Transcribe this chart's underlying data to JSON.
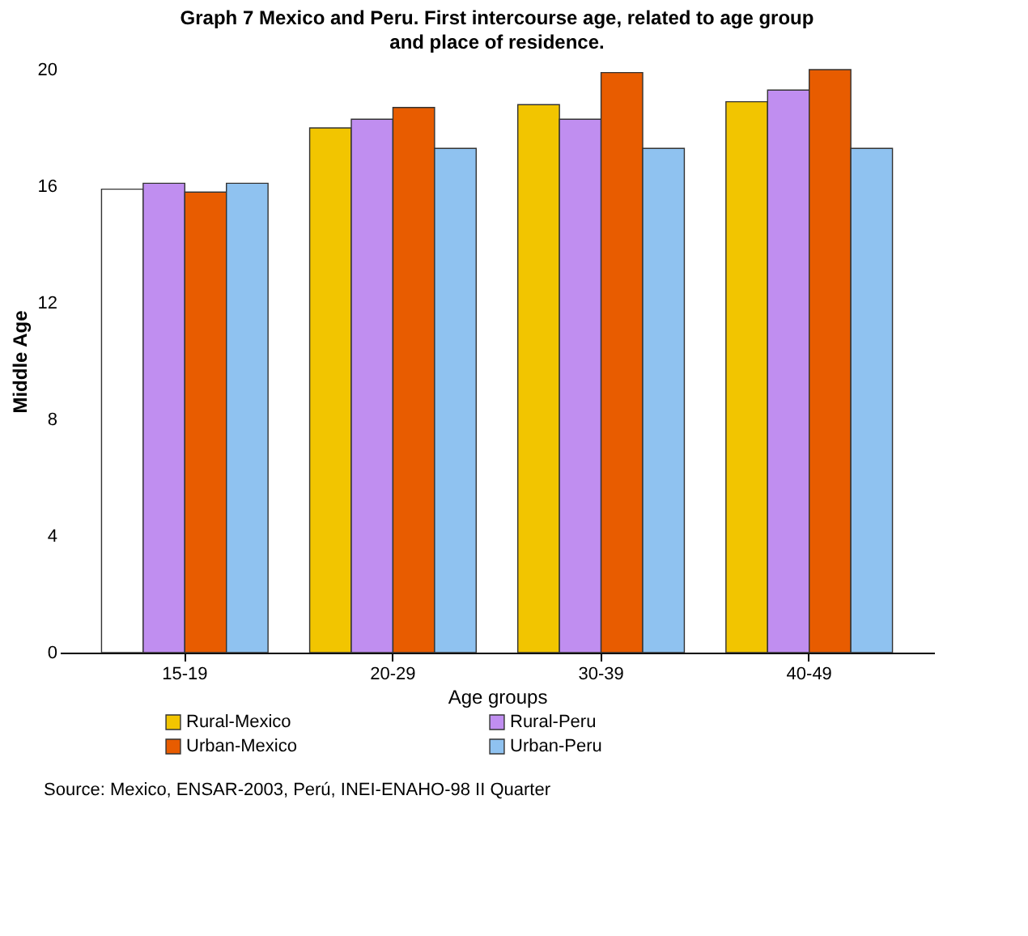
{
  "chart_data": {
    "type": "bar",
    "title": "Graph 7 Mexico and Peru. First intercourse age, related to age group and place of residence.",
    "xlabel": "Age groups",
    "ylabel": "Middle Age",
    "categories": [
      "15-19",
      "20-29",
      "30-39",
      "40-49"
    ],
    "series": [
      {
        "name": "Rural-Mexico",
        "color": "#f2c500",
        "colors": [
          "#ffffff",
          "#f2c500",
          "#f2c500",
          "#f2c500"
        ],
        "values": [
          15.9,
          18.0,
          18.8,
          18.9
        ]
      },
      {
        "name": "Rural-Peru",
        "color": "#c08ef0",
        "values": [
          16.1,
          18.3,
          18.3,
          19.3
        ]
      },
      {
        "name": "Urban-Mexico",
        "color": "#e85c00",
        "values": [
          15.8,
          18.7,
          19.9,
          20.0
        ]
      },
      {
        "name": "Urban-Peru",
        "color": "#8fc2f0",
        "values": [
          16.1,
          17.3,
          17.3,
          17.3
        ]
      }
    ],
    "ylim": [
      0,
      20
    ],
    "yticks": [
      0,
      4,
      8,
      12,
      16,
      20
    ],
    "grid": false,
    "legend": "bottom",
    "annotations": [
      "Source: Mexico, ENSAR-2003, Perú, INEI-ENAHO-98 II Quarter"
    ]
  }
}
